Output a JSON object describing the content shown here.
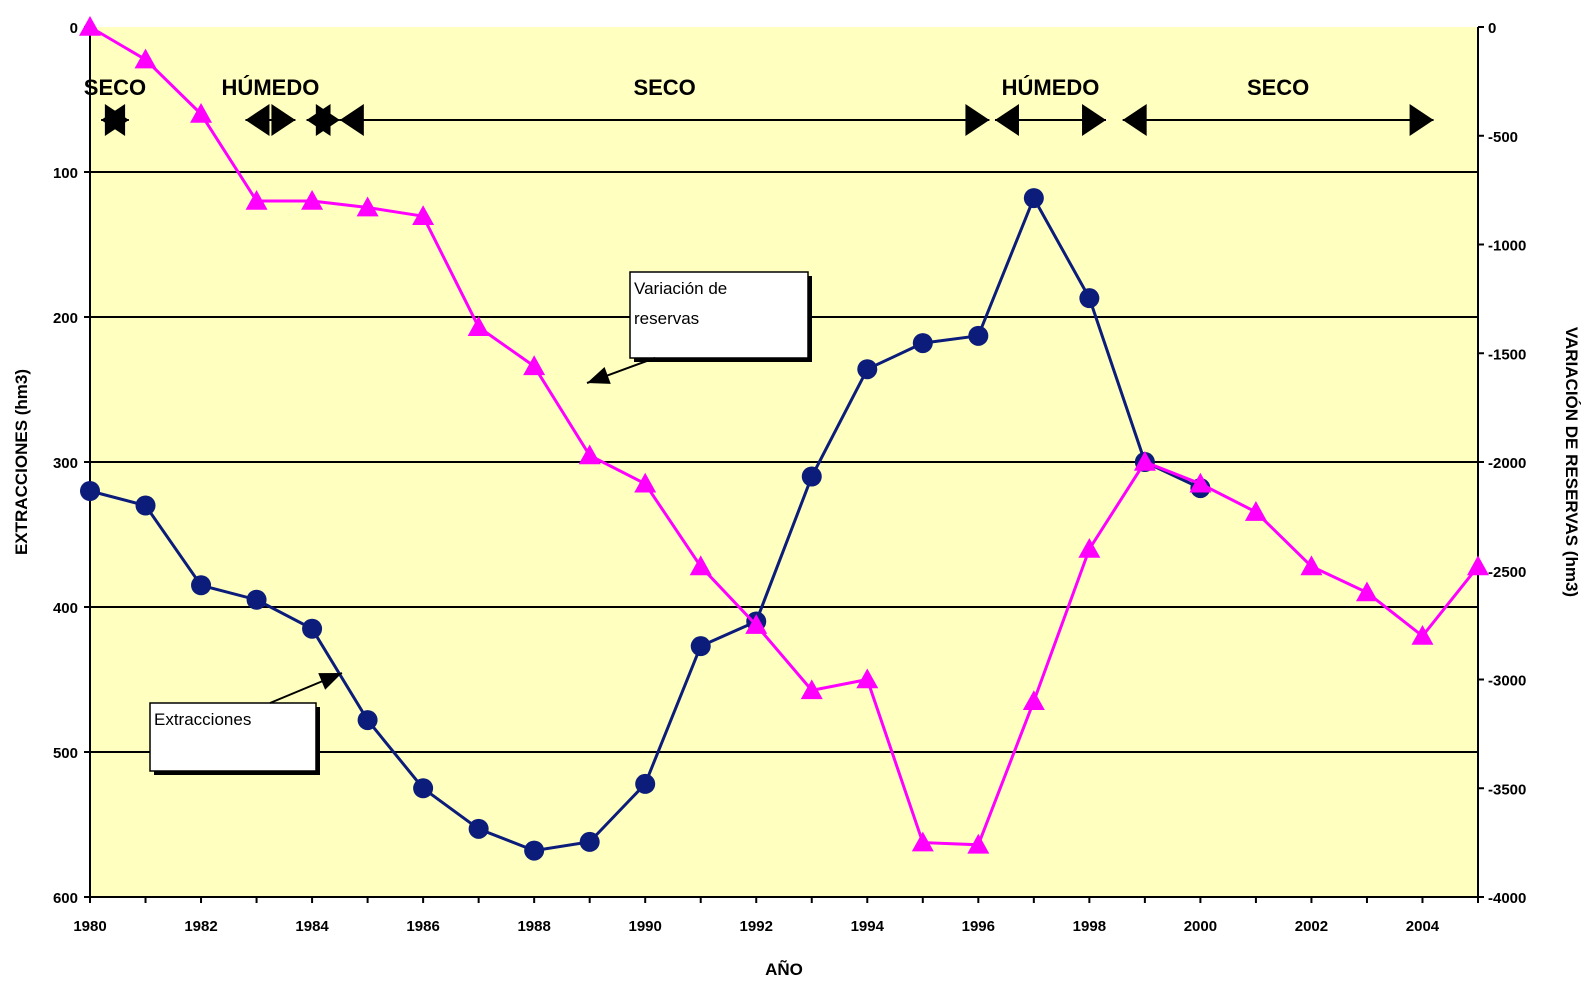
{
  "chart_data": {
    "type": "line",
    "xlabel": "AÑO",
    "ylabel_left": "EXTRACCIONES (hm3)",
    "ylabel_right": "VARIACIÓN DE RESERVAS (hm3)",
    "x_ticks": [
      "1980",
      "1982",
      "1984",
      "1986",
      "1988",
      "1990",
      "1992",
      "1994",
      "1996",
      "1998",
      "2000",
      "2002",
      "2004"
    ],
    "y_left_ticks": [
      "0",
      "100",
      "200",
      "300",
      "400",
      "500",
      "600"
    ],
    "y_right_ticks": [
      "0",
      "-500",
      "-1000",
      "-1500",
      "-2000",
      "-2500",
      "-3000",
      "-3500",
      "-4000"
    ],
    "xlim": [
      1980,
      2005
    ],
    "ylim_left": [
      0,
      600
    ],
    "ylim_left_inverted": true,
    "ylim_right": [
      -4000,
      0
    ],
    "grid": "horizontal",
    "background_color": "#ffffc0",
    "series": [
      {
        "axis": "left",
        "color": "#0b1c7a",
        "marker": "circle",
        "x": [
          1980,
          1981,
          1982,
          1983,
          1984,
          1985,
          1986,
          1987,
          1988,
          1989,
          1990,
          1991,
          1992,
          1993,
          1994,
          1995,
          1996,
          1997,
          1998,
          1999,
          2000
        ],
        "values": [
          320,
          330,
          385,
          395,
          415,
          478,
          525,
          553,
          568,
          562,
          522,
          427,
          410,
          310,
          236,
          218,
          213,
          118,
          187,
          300,
          318
        ]
      },
      {
        "axis": "right",
        "color": "#ff00ff",
        "marker": "triangle",
        "x": [
          1980,
          1981,
          1982,
          1983,
          1984,
          1985,
          1986,
          1987,
          1988,
          1989,
          1990,
          1991,
          1992,
          1993,
          1994,
          1995,
          1996,
          1997,
          1998,
          1999,
          2000,
          2001,
          2002,
          2003,
          2004,
          2005
        ],
        "values": [
          0,
          -150,
          -400,
          -800,
          -800,
          -830,
          -870,
          -1380,
          -1560,
          -1970,
          -2100,
          -2480,
          -2750,
          -3050,
          -3000,
          -3750,
          -3760,
          -3100,
          -2400,
          -2000,
          -2100,
          -2230,
          -2480,
          -2600,
          -2800,
          -2480
        ]
      }
    ],
    "periods": [
      {
        "label": "SECO",
        "start": 1980.2,
        "end": 1980.7
      },
      {
        "label": "HÚMEDO",
        "start": 1982.8,
        "end": 1983.7
      },
      {
        "label": "",
        "start": 1983.9,
        "end": 1984.5
      },
      {
        "label": "SECO",
        "start": 1984.5,
        "end": 1996.2
      },
      {
        "label": "HÚMEDO",
        "start": 1996.3,
        "end": 1998.3
      },
      {
        "label": "SECO",
        "start": 1998.6,
        "end": 2004.2
      }
    ],
    "annotations": [
      {
        "text_lines": [
          "Variación de",
          "reservas"
        ],
        "target_series": 1
      },
      {
        "text_lines": [
          "Extracciones"
        ],
        "target_series": 0
      }
    ]
  }
}
